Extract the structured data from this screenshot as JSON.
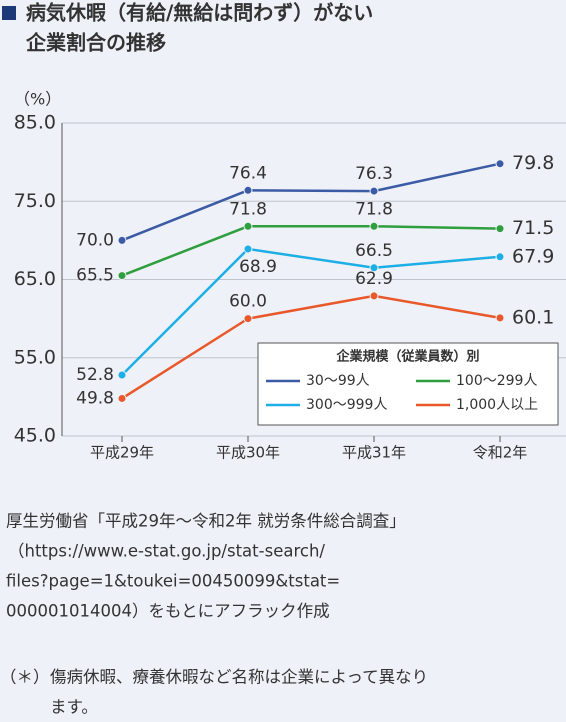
{
  "chart_data": {
    "type": "line",
    "title": [
      "病気休暇（有給/無給は問わず）がない",
      "企業割合の推移"
    ],
    "ylabel": "（%）",
    "categories": [
      "平成29年",
      "平成30年",
      "平成31年",
      "令和2年"
    ],
    "ylim": [
      45,
      85
    ],
    "yticks": [
      {
        "value": 45,
        "label": "45.0"
      },
      {
        "value": 55,
        "label": "55.0"
      },
      {
        "value": 65,
        "label": "65.0"
      },
      {
        "value": 75,
        "label": "75.0"
      },
      {
        "value": 85,
        "label": "85.0"
      }
    ],
    "grid": true,
    "legend_title": "企業規模（従業員数）別",
    "legend_position": "lower right",
    "series": [
      {
        "name": "30〜99人",
        "color": "#3b5ba5",
        "values": [
          70.0,
          76.4,
          76.3,
          79.8
        ],
        "value_labels": [
          "70.0",
          "76.4",
          "76.3",
          "79.8"
        ]
      },
      {
        "name": "100〜299人",
        "color": "#2e9e3e",
        "values": [
          65.5,
          71.8,
          71.8,
          71.5
        ],
        "value_labels": [
          "65.5",
          "71.8",
          "71.8",
          "71.5"
        ]
      },
      {
        "name": "300〜999人",
        "color": "#1eaee6",
        "values": [
          52.8,
          68.9,
          66.5,
          67.9
        ],
        "value_labels": [
          "52.8",
          "68.9",
          "66.5",
          "67.9"
        ]
      },
      {
        "name": "1,000人以上",
        "color": "#e8582a",
        "values": [
          49.8,
          60.0,
          62.9,
          60.1
        ],
        "value_labels": [
          "49.8",
          "60.0",
          "62.9",
          "60.1"
        ]
      }
    ],
    "source": [
      "厚生労働省「平成29年〜令和2年 就労条件総合調査」",
      "（https://www.e-stat.go.jp/stat-search/",
      "files?page=1&toukei=00450099&tstat=",
      "000001014004）をもとにアフラック作成"
    ],
    "note_mark": "（＊）",
    "note": [
      "傷病休暇、療養休暇など名称は企業によって異なり",
      "ます。"
    ]
  }
}
